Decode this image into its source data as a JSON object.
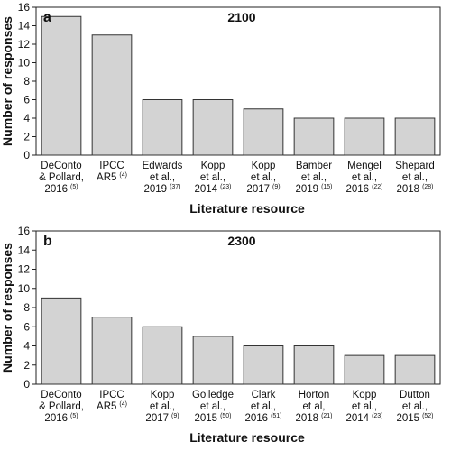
{
  "chart_data": [
    {
      "type": "bar",
      "panel": "a",
      "title": "2100",
      "xlabel": "Literature resource",
      "ylabel": "Number of responses",
      "ylim": [
        0,
        16
      ],
      "yticks": [
        "0",
        "2",
        "4",
        "6",
        "8",
        "10",
        "12",
        "14",
        "16"
      ],
      "grid": false,
      "bar_color": "#d3d3d3",
      "categories": [
        {
          "lines": [
            "DeConto",
            "& Pollard,",
            "2016"
          ],
          "ref": "(5)"
        },
        {
          "lines": [
            "IPCC",
            "AR5"
          ],
          "ref": "(4)"
        },
        {
          "lines": [
            "Edwards",
            "et al.,",
            "2019"
          ],
          "ref": "(37)"
        },
        {
          "lines": [
            "Kopp",
            "et al.,",
            "2014"
          ],
          "ref": "(23)"
        },
        {
          "lines": [
            "Kopp",
            "et al.,",
            "2017"
          ],
          "ref": "(9)"
        },
        {
          "lines": [
            "Bamber",
            "et al.,",
            "2019"
          ],
          "ref": "(15)"
        },
        {
          "lines": [
            "Mengel",
            "et al.,",
            "2016"
          ],
          "ref": "(22)"
        },
        {
          "lines": [
            "Shepard",
            "et al.,",
            "2018"
          ],
          "ref": "(28)"
        }
      ],
      "values": [
        15,
        13,
        6,
        6,
        5,
        4,
        4,
        4
      ]
    },
    {
      "type": "bar",
      "panel": "b",
      "title": "2300",
      "xlabel": "Literature resource",
      "ylabel": "Number of responses",
      "ylim": [
        0,
        16
      ],
      "yticks": [
        "0",
        "2",
        "4",
        "6",
        "8",
        "10",
        "12",
        "14",
        "16"
      ],
      "grid": false,
      "bar_color": "#d3d3d3",
      "categories": [
        {
          "lines": [
            "DeConto",
            "& Pollard,",
            "2016"
          ],
          "ref": "(5)"
        },
        {
          "lines": [
            "IPCC",
            "AR5"
          ],
          "ref": "(4)"
        },
        {
          "lines": [
            "Kopp",
            "et al.,",
            "2017"
          ],
          "ref": "(9)"
        },
        {
          "lines": [
            "Golledge",
            "et al.,",
            "2015"
          ],
          "ref": "(50)"
        },
        {
          "lines": [
            "Clark",
            "et al.,",
            "2016"
          ],
          "ref": "(51)"
        },
        {
          "lines": [
            "Horton",
            "et al,",
            "2018"
          ],
          "ref": "(21)"
        },
        {
          "lines": [
            "Kopp",
            "et al.,",
            "2014"
          ],
          "ref": "(23)"
        },
        {
          "lines": [
            "Dutton",
            "et al.,",
            "2015"
          ],
          "ref": "(52)"
        }
      ],
      "values": [
        9,
        7,
        6,
        5,
        4,
        4,
        3,
        3
      ]
    }
  ]
}
